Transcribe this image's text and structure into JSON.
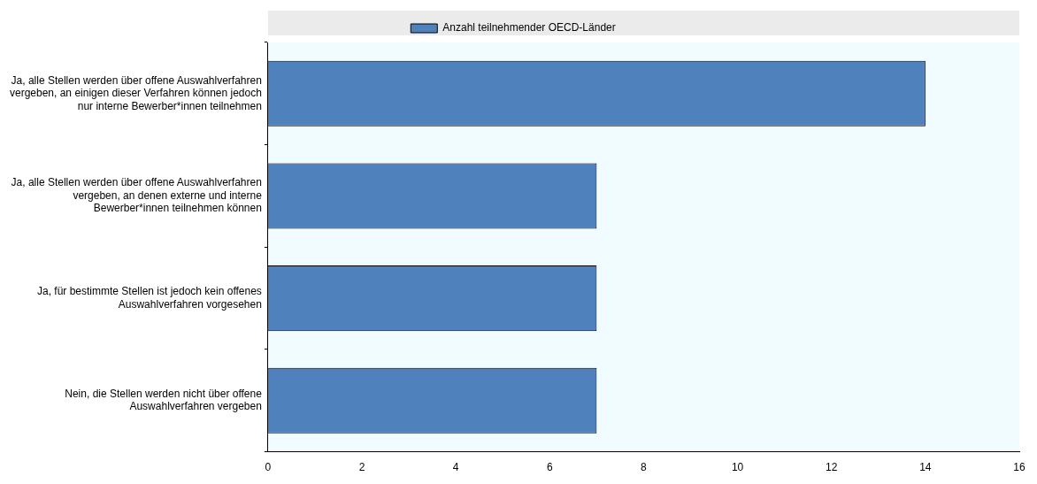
{
  "chart_data": {
    "type": "bar",
    "orientation": "horizontal",
    "categories": [
      "Ja, alle Stellen werden über offene Auswahlverfahren vergeben, an einigen dieser Verfahren können jedoch nur interne Bewerber*innen teilnehmen",
      "Ja, alle Stellen werden über offene Auswahlverfahren vergeben, an denen externe und interne Bewerber*innen teilnehmen können",
      "Ja, für bestimmte Stellen ist jedoch kein offenes Auswahlverfahren vorgesehen",
      "Nein, die Stellen werden nicht über offene Auswahlverfahren vergeben"
    ],
    "series": [
      {
        "name": "Anzahl teilnehmender OECD-Länder",
        "color": "#4f81bd",
        "values": [
          14,
          7,
          7,
          7
        ]
      }
    ],
    "xlim": [
      0,
      16
    ],
    "xticks": [
      0,
      2,
      4,
      6,
      8,
      10,
      12,
      14,
      16
    ],
    "grid": false,
    "legend": "top"
  }
}
